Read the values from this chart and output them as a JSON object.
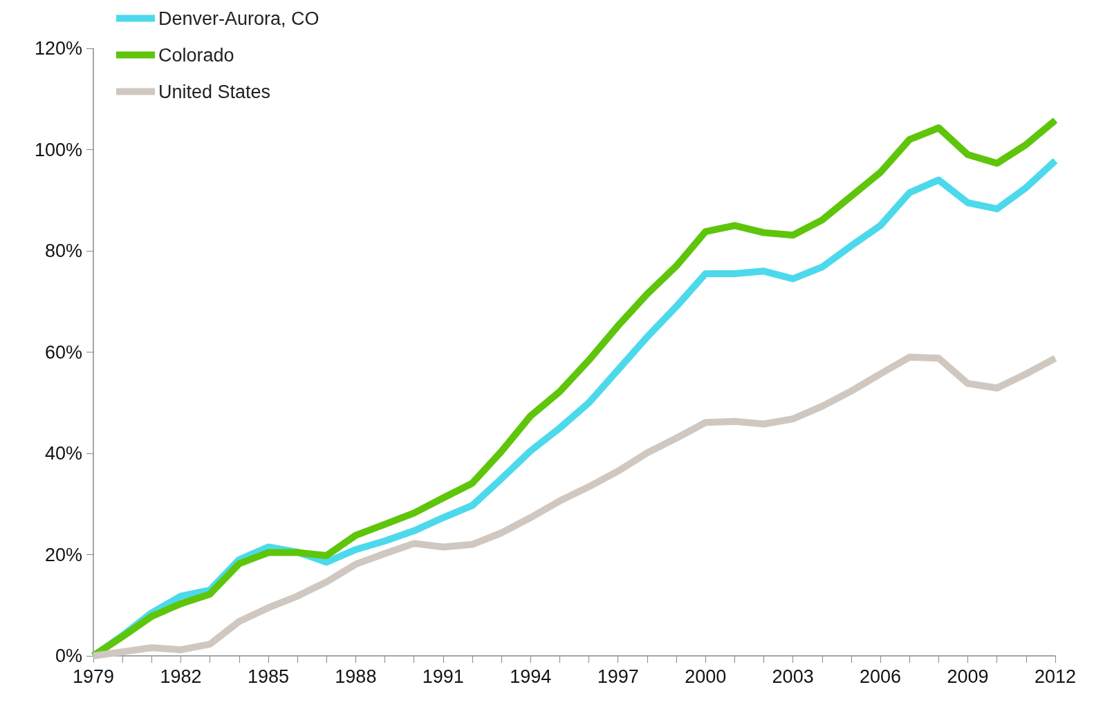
{
  "chart_data": {
    "type": "line",
    "categories": [
      "1979",
      null,
      null,
      "1982",
      null,
      null,
      "1985",
      null,
      null,
      "1988",
      null,
      null,
      "1991",
      null,
      null,
      "1994",
      null,
      null,
      "1997",
      null,
      null,
      "2000",
      null,
      null,
      "2003",
      null,
      null,
      "2006",
      null,
      null,
      "2009",
      null,
      null,
      "2012"
    ],
    "series": [
      {
        "name": "Denver-Aurora, CO",
        "color": "#4dd9ec",
        "values": [
          0,
          4,
          8.5,
          11.8,
          13,
          19,
          21.5,
          20.5,
          18.5,
          21,
          22.7,
          24.7,
          27.3,
          29.7,
          35,
          40.5,
          45,
          50,
          56.5,
          63,
          69,
          75.5,
          75.5,
          76,
          74.5,
          76.8,
          81,
          85,
          91.5,
          94,
          89.5,
          88.3,
          92.5,
          97.8
        ]
      },
      {
        "name": "Colorado",
        "color": "#5ec50a",
        "values": [
          0,
          3.8,
          7.8,
          10.3,
          12.2,
          18.2,
          20.4,
          20.4,
          19.8,
          23.8,
          26,
          28.2,
          31.2,
          34.1,
          40.4,
          47.4,
          52.2,
          58.4,
          65.2,
          71.5,
          77,
          83.8,
          85,
          83.6,
          83.1,
          86.1,
          90.8,
          95.5,
          102,
          104.3,
          99,
          97.3,
          101,
          105.8
        ]
      },
      {
        "name": "United States",
        "color": "#d0c8c0",
        "values": [
          0,
          0.8,
          1.6,
          1.2,
          2.3,
          6.8,
          9.5,
          11.8,
          14.6,
          18.1,
          20.2,
          22.2,
          21.5,
          22,
          24.3,
          27.3,
          30.6,
          33.4,
          36.5,
          40.1,
          43,
          46.1,
          46.3,
          45.8,
          46.8,
          49.3,
          52.3,
          55.7,
          59,
          58.8,
          53.8,
          52.9,
          55.7,
          58.8
        ]
      }
    ],
    "ylim": [
      0,
      120
    ],
    "yticks": [
      {
        "value": 0,
        "label": "0%"
      },
      {
        "value": 20,
        "label": "20%"
      },
      {
        "value": 40,
        "label": "40%"
      },
      {
        "value": 60,
        "label": "60%"
      },
      {
        "value": 80,
        "label": "80%"
      },
      {
        "value": 100,
        "label": "100%"
      },
      {
        "value": 120,
        "label": "120%"
      }
    ],
    "grid": false,
    "legend": "top left",
    "marker": "none",
    "line_style": "solid"
  }
}
